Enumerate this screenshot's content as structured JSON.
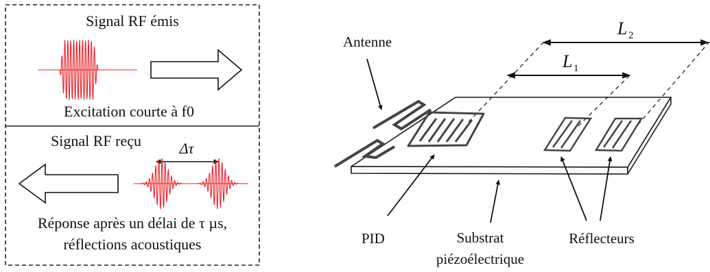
{
  "left_panel": {
    "top": {
      "title": "Signal RF émis",
      "caption": "Excitation courte à f0"
    },
    "bottom": {
      "title": "Signal RF reçu",
      "delay_symbol": "Δτ",
      "caption_line1": "Réponse après un délai de τ µs,",
      "caption_line2": "réflections acoustiques"
    }
  },
  "right_panel": {
    "label_antenna": "Antenne",
    "label_pid": "PID",
    "label_substrate_line1": "Substrat",
    "label_substrate_line2": "piézoélectrique",
    "label_reflectors": "Réflecteurs",
    "dim_L1": {
      "base": "L",
      "sub": "1"
    },
    "dim_L2": {
      "base": "L",
      "sub": "2"
    }
  },
  "colors": {
    "signal": "#e8202a",
    "stroke": "#1a1a1a",
    "electrode": "#444444"
  }
}
